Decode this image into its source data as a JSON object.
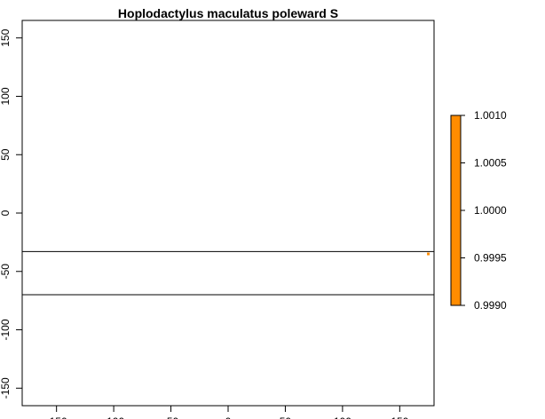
{
  "chart_data": {
    "type": "heatmap",
    "title": "Hoplodactylus maculatus poleward S",
    "xlabel": "",
    "ylabel": "",
    "xlim": [
      -180,
      180
    ],
    "ylim": [
      -165,
      165
    ],
    "x_ticks": [
      -150,
      -100,
      -50,
      0,
      50,
      100,
      150
    ],
    "y_ticks": [
      -150,
      -100,
      -50,
      0,
      50,
      100,
      150
    ],
    "grid": false,
    "horizontal_lines_y": [
      -33,
      -70
    ],
    "points": [
      {
        "x": 175,
        "y": -35,
        "value": 1.0
      }
    ],
    "point_color": "#ff8c00",
    "colorbar": {
      "range": [
        0.999,
        1.001
      ],
      "ticks": [
        "1.0010",
        "1.0005",
        "1.0000",
        "0.9995",
        "0.9990"
      ],
      "tick_values": [
        1.001,
        1.0005,
        1.0,
        0.9995,
        0.999
      ],
      "color": "#ff8c00",
      "placement": "right"
    }
  }
}
